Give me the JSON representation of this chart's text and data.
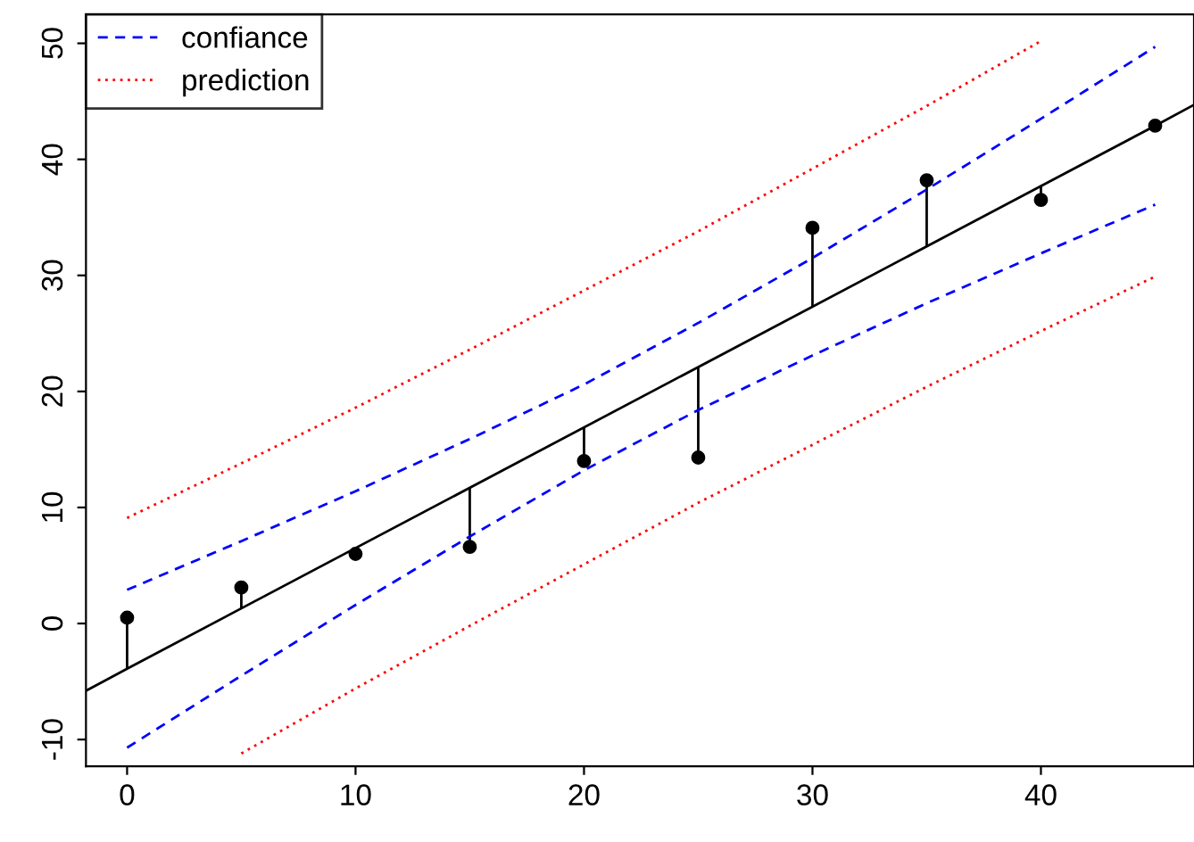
{
  "chart_data": {
    "type": "scatter",
    "xlim": [
      -1.8,
      46.7
    ],
    "ylim": [
      -12.3,
      52.5
    ],
    "xticks": [
      0,
      10,
      20,
      30,
      40
    ],
    "yticks": [
      -10,
      0,
      10,
      20,
      30,
      40,
      50
    ],
    "grid": false,
    "legend": "top left",
    "series": [
      {
        "color": "#000000",
        "marker": "circle",
        "x": [
          0,
          5,
          10,
          15,
          20,
          25,
          30,
          35,
          40,
          45
        ],
        "values": [
          0.5,
          3.1,
          6.0,
          6.6,
          14.0,
          14.3,
          34.1,
          38.2,
          36.5,
          42.9
        ],
        "errors": [
          [
            -3.9,
            0.5
          ],
          [
            1.3,
            3.1
          ],
          [
            6.0,
            6.5
          ],
          [
            6.6,
            11.7
          ],
          [
            14.0,
            16.9
          ],
          [
            14.3,
            22.1
          ],
          [
            27.3,
            34.1
          ],
          [
            32.5,
            38.2
          ],
          [
            36.5,
            37.7
          ],
          [
            42.9,
            42.9
          ]
        ]
      },
      {
        "type": "line",
        "color": "#000000",
        "line_style": "solid",
        "x": [
          -1.8,
          0,
          45,
          46.7
        ],
        "values": [
          -5.8,
          -3.9,
          42.9,
          44.7
        ]
      },
      {
        "type": "line",
        "name": "confiance",
        "color": "#0000ff",
        "line_style": "dashed",
        "x": [
          0,
          5,
          10,
          15,
          20,
          25,
          30,
          35,
          40,
          45
        ],
        "values": [
          2.9,
          7.1,
          11.4,
          15.9,
          20.6,
          25.9,
          31.5,
          37.4,
          43.5,
          49.7
        ]
      },
      {
        "type": "line",
        "color": "#0000ff",
        "line_style": "dashed",
        "x": [
          0,
          5,
          10,
          15,
          20,
          25,
          30,
          35,
          40,
          45
        ],
        "values": [
          -10.7,
          -4.5,
          1.6,
          7.5,
          13.2,
          18.4,
          23.1,
          27.6,
          31.9,
          36.1
        ]
      },
      {
        "type": "line",
        "name": "prediction",
        "color": "#ff0000",
        "line_style": "dotted",
        "x": [
          0,
          5,
          10,
          15,
          20,
          25,
          30,
          35,
          40
        ],
        "values": [
          9.1,
          13.8,
          18.6,
          23.6,
          28.7,
          33.8,
          39.2,
          44.6,
          50.2
        ]
      },
      {
        "type": "line",
        "color": "#ff0000",
        "line_style": "dotted",
        "x": [
          5,
          10,
          15,
          20,
          25,
          30,
          35,
          40,
          45
        ],
        "values": [
          -11.2,
          -5.6,
          -0.2,
          5.1,
          10.4,
          15.4,
          20.4,
          25.2,
          29.9
        ]
      }
    ]
  }
}
